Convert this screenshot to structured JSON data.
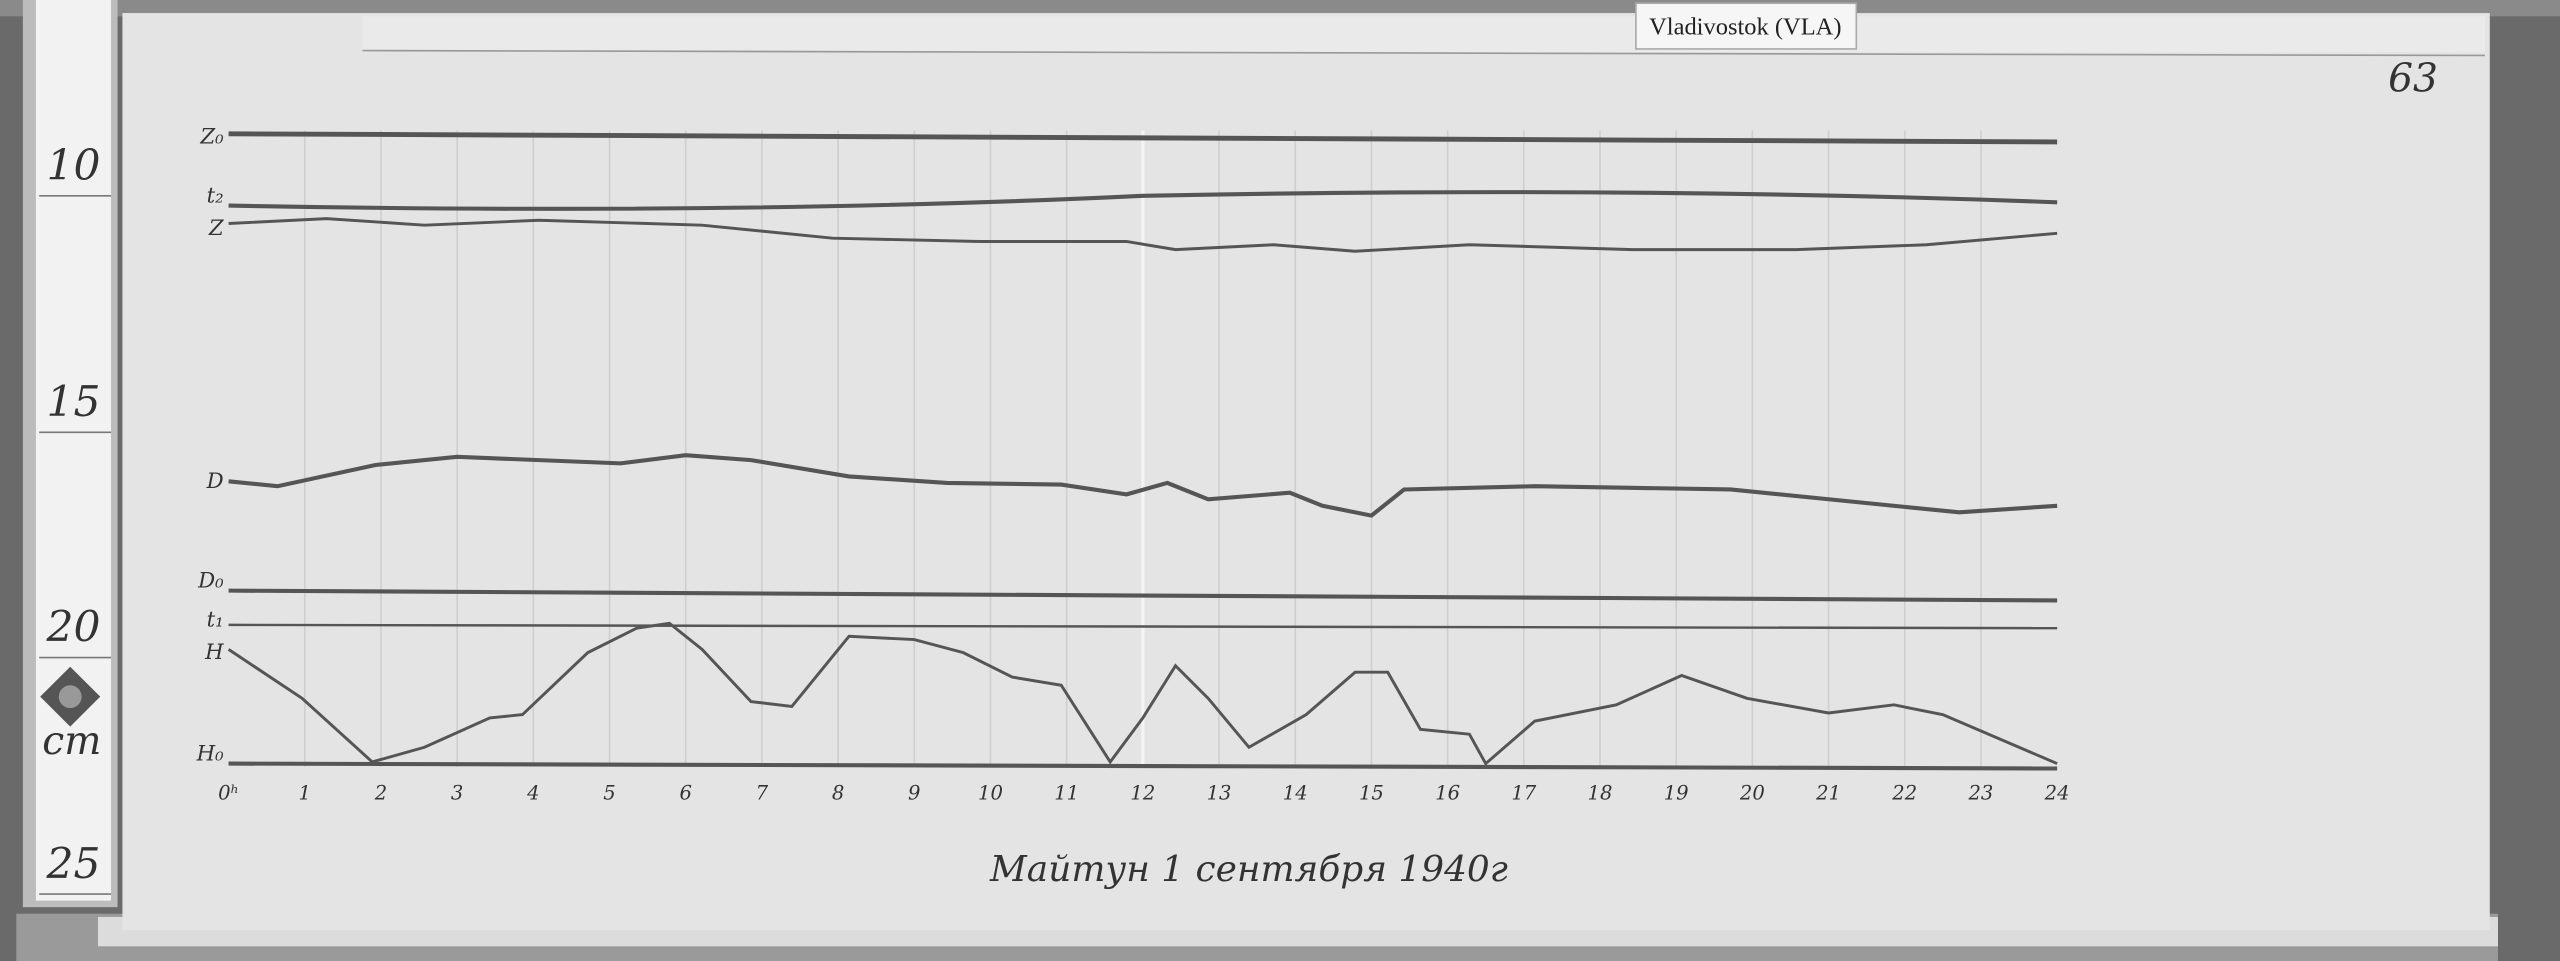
{
  "station_label": "Vladivostok (VLA)",
  "sheet_number": "63",
  "ruler": {
    "marks": [
      "10",
      "15",
      "20",
      "25"
    ],
    "unit": "cm"
  },
  "traces": [
    "Z₀",
    "t₂",
    "Z",
    "D",
    "D₀",
    "t₁",
    "H",
    "H₀"
  ],
  "hours": [
    "0ʰ",
    "1",
    "2",
    "3",
    "4",
    "5",
    "6",
    "7",
    "8",
    "9",
    "10",
    "11",
    "12",
    "13",
    "14",
    "15",
    "16",
    "17",
    "18",
    "19",
    "20",
    "21",
    "22",
    "23",
    "24"
  ],
  "caption": "Майтун 1 сентября 1940г"
}
